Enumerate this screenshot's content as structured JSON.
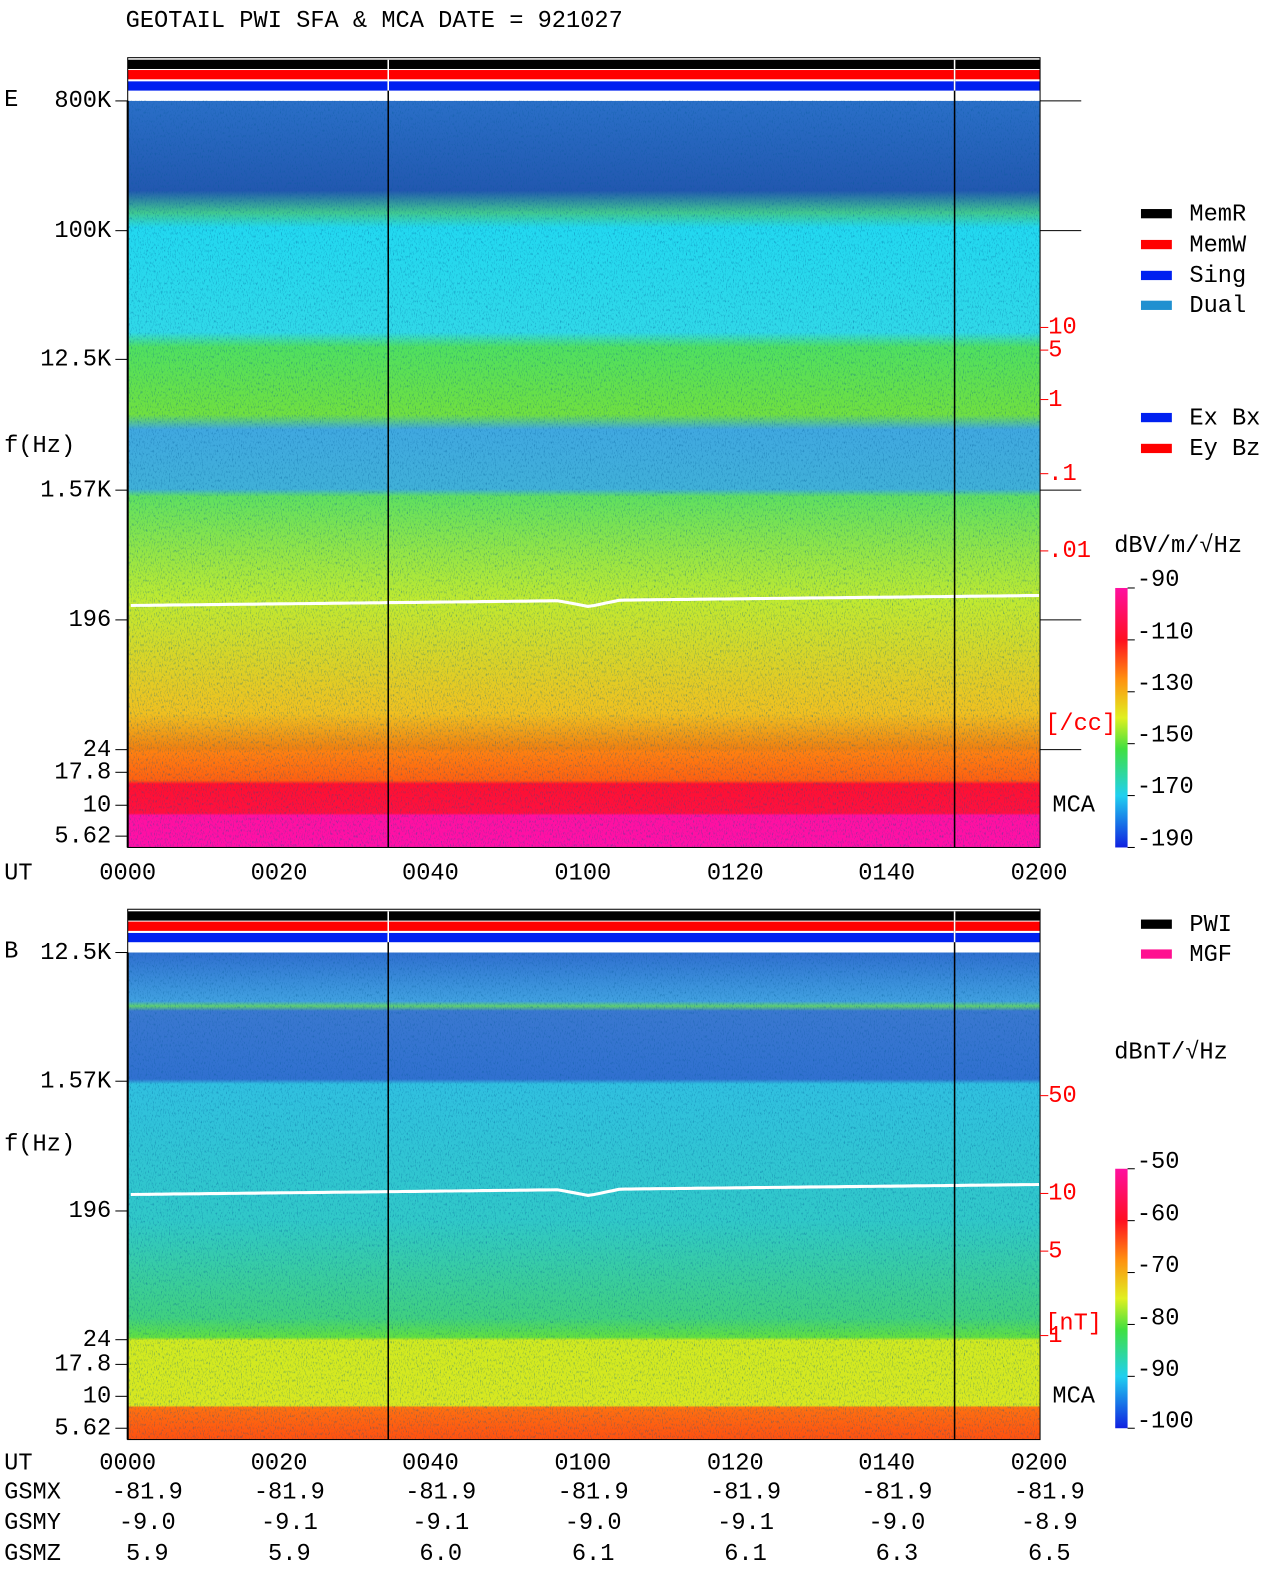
{
  "header": {
    "title": "GEOTAIL  PWI SFA & MCA   DATE = 921027"
  },
  "panels": [
    {
      "label": "E",
      "y_label": "f(Hz)",
      "freq_ticks": [
        "800K",
        "100K",
        "12.5K",
        "1.57K",
        "196",
        "24",
        "17.8",
        "10",
        "5.62"
      ],
      "right_ticks": [
        "10",
        "5",
        "1",
        ".1",
        ".01"
      ],
      "right_unit": "[/cc]",
      "mca": "MCA",
      "x_label": "UT",
      "x_ticks": [
        "0000",
        "0020",
        "0040",
        "0100",
        "0120",
        "0140",
        "0200"
      ],
      "legend": [
        "MemR",
        "MemW",
        "Sing",
        "Dual",
        "Ex Bx",
        "Ey Bz"
      ],
      "colorbar": {
        "unit": "dBV/m/√Hz",
        "ticks": [
          "-90",
          "-110",
          "-130",
          "-150",
          "-170",
          "-190"
        ]
      }
    },
    {
      "label": "B",
      "y_label": "f(Hz)",
      "freq_ticks": [
        "12.5K",
        "1.57K",
        "196",
        "24",
        "17.8",
        "10",
        "5.62"
      ],
      "right_ticks": [
        "50",
        "10",
        "5",
        "1"
      ],
      "right_unit": "[nT]",
      "mca": "MCA",
      "x_label": "UT",
      "x_ticks": [
        "0000",
        "0020",
        "0040",
        "0100",
        "0120",
        "0140",
        "0200"
      ],
      "legend": [
        "PWI",
        "MGF"
      ],
      "colorbar": {
        "unit": "dBnT/√Hz",
        "ticks": [
          "-50",
          "-60",
          "-70",
          "-80",
          "-90",
          "-100"
        ]
      }
    }
  ],
  "ephemeris": {
    "rows": [
      {
        "name": "GSMX",
        "values": [
          "-81.9",
          "-81.9",
          "-81.9",
          "-81.9",
          "-81.9",
          "-81.9",
          "-81.9"
        ]
      },
      {
        "name": "GSMY",
        "values": [
          "-9.0",
          "-9.1",
          "-9.1",
          "-9.0",
          "-9.1",
          "-9.0",
          "-8.9"
        ]
      },
      {
        "name": "GSMZ",
        "values": [
          "5.9",
          "5.9",
          "6.0",
          "6.1",
          "6.1",
          "6.3",
          "6.5"
        ]
      }
    ]
  }
}
